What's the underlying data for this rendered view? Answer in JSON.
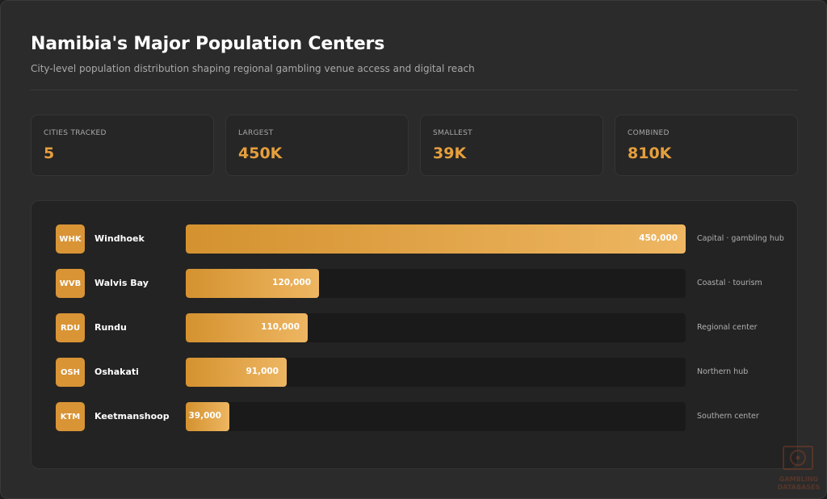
{
  "header": {
    "title": "Namibia's Major Population Centers",
    "subtitle": "City-level population distribution shaping regional gambling venue access and digital reach"
  },
  "stats": [
    {
      "label": "CITIES TRACKED",
      "value": "5"
    },
    {
      "label": "LARGEST",
      "value": "450K"
    },
    {
      "label": "SMALLEST",
      "value": "39K"
    },
    {
      "label": "COMBINED",
      "value": "810K"
    }
  ],
  "chart_data": {
    "type": "bar",
    "orientation": "horizontal",
    "max": 450000,
    "bars": [
      {
        "code": "WHK",
        "city": "Windhoek",
        "value": 450000,
        "label": "450,000",
        "note": "Capital · gambling hub"
      },
      {
        "code": "WVB",
        "city": "Walvis Bay",
        "value": 120000,
        "label": "120,000",
        "note": "Coastal · tourism"
      },
      {
        "code": "RDU",
        "city": "Rundu",
        "value": 110000,
        "label": "110,000",
        "note": "Regional center"
      },
      {
        "code": "OSH",
        "city": "Oshakati",
        "value": 91000,
        "label": "91,000",
        "note": "Northern hub"
      },
      {
        "code": "KTM",
        "city": "Keetmanshoop",
        "value": 39000,
        "label": "39,000",
        "note": "Southern center"
      }
    ]
  },
  "watermark": {
    "line1": "GAMBLING",
    "line2": "DATABASES",
    "icon": "dice-logo-icon"
  },
  "colors": {
    "accent": "#e59f3d",
    "bar_start": "#d4922f",
    "bar_end": "#eeb662",
    "track": "#1a1a1a"
  }
}
